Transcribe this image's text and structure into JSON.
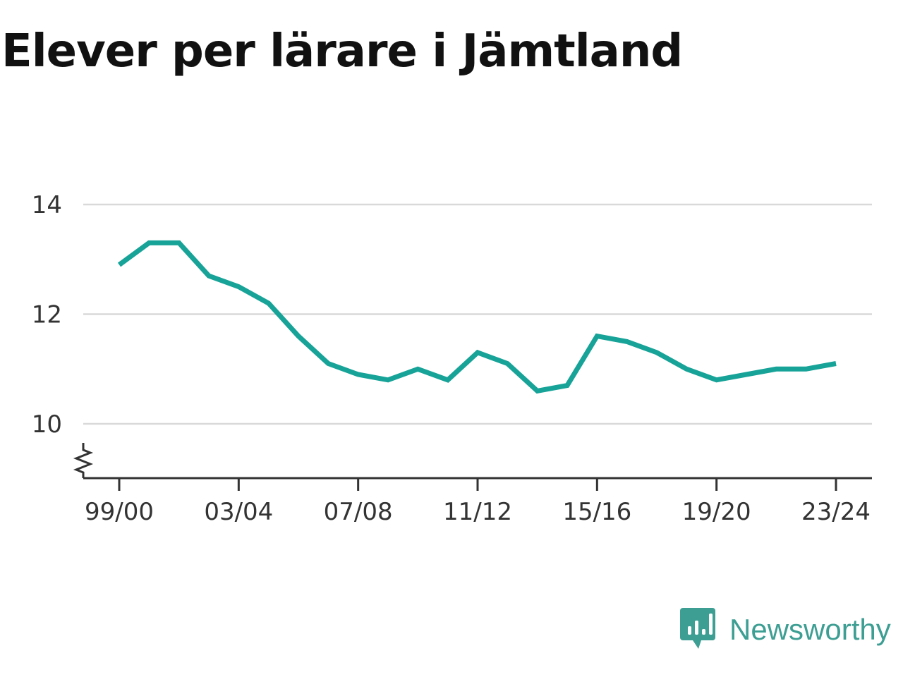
{
  "title": "Elever per lärare i Jämtland",
  "brand": "Newsworthy",
  "colors": {
    "line": "#17a398",
    "grid": "#d9d9d9",
    "axis": "#333333",
    "brand": "#3d9e93"
  },
  "chart_data": {
    "type": "line",
    "title": "Elever per lärare i Jämtland",
    "xlabel": "",
    "ylabel": "",
    "categories": [
      "99/00",
      "00/01",
      "01/02",
      "02/03",
      "03/04",
      "04/05",
      "05/06",
      "06/07",
      "07/08",
      "08/09",
      "09/10",
      "10/11",
      "11/12",
      "12/13",
      "13/14",
      "14/15",
      "15/16",
      "16/17",
      "17/18",
      "18/19",
      "19/20",
      "20/21",
      "21/22",
      "22/23",
      "23/24"
    ],
    "series": [
      {
        "values": [
          12.9,
          13.3,
          13.3,
          12.7,
          12.5,
          12.2,
          11.6,
          11.1,
          10.9,
          10.8,
          11.0,
          10.8,
          11.3,
          11.1,
          10.6,
          10.7,
          11.6,
          11.5,
          11.3,
          11.0,
          10.8,
          10.9,
          11.0,
          11.0,
          11.1
        ]
      }
    ],
    "x_tick_labels": [
      "99/00",
      "03/04",
      "07/08",
      "11/12",
      "15/16",
      "19/20",
      "23/24"
    ],
    "y_ticks": [
      10,
      12,
      14
    ],
    "ylim": [
      9,
      14
    ],
    "y_axis_break": true,
    "grid": true,
    "legend": "none"
  }
}
